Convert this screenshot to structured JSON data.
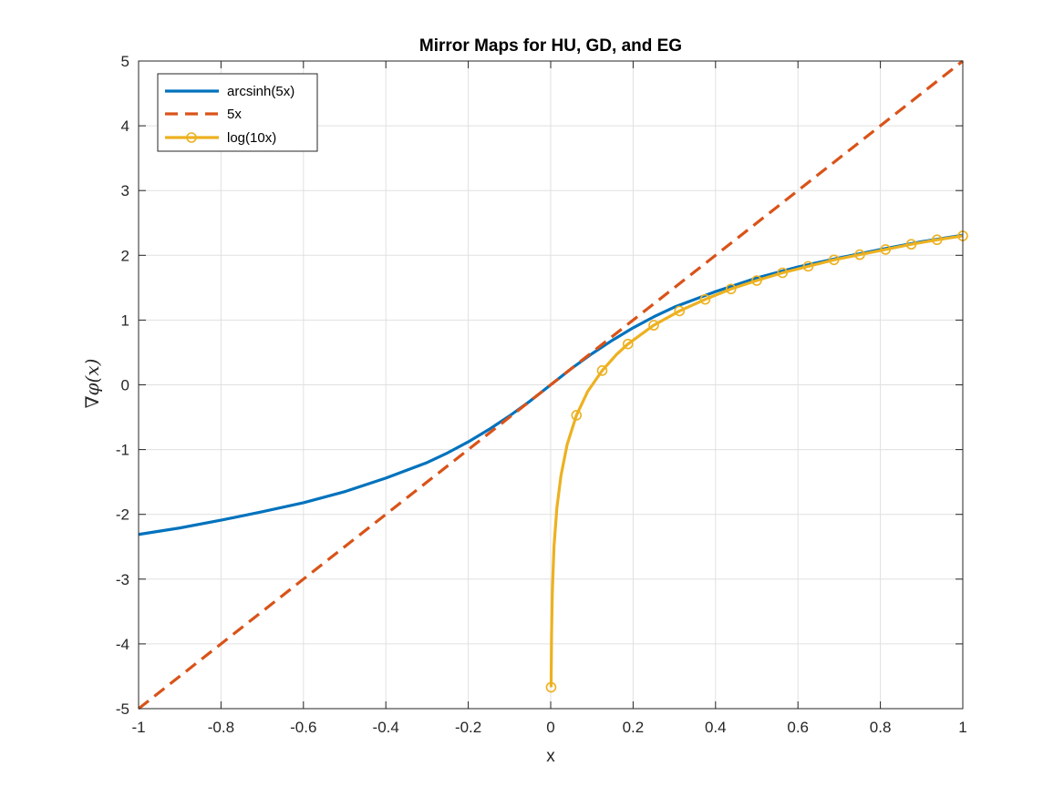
{
  "chart_data": {
    "type": "line",
    "title": "Mirror Maps for HU, GD, and EG",
    "xlabel": "x",
    "ylabel": "∇φ(x)",
    "xlim": [
      -1,
      1
    ],
    "ylim": [
      -5,
      5
    ],
    "xticks": [
      -1,
      -0.8,
      -0.6,
      -0.4,
      -0.2,
      0,
      0.2,
      0.4,
      0.6,
      0.8,
      1
    ],
    "xtick_labels": [
      "-1",
      "-0.8",
      "-0.6",
      "-0.4",
      "-0.2",
      "0",
      "0.2",
      "0.4",
      "0.6",
      "0.8",
      "1"
    ],
    "yticks": [
      -5,
      -4,
      -3,
      -2,
      -1,
      0,
      1,
      2,
      3,
      4,
      5
    ],
    "ytick_labels": [
      "-5",
      "-4",
      "-3",
      "-2",
      "-1",
      "0",
      "1",
      "2",
      "3",
      "4",
      "5"
    ],
    "grid": true,
    "legend_position": "top-left",
    "series": [
      {
        "name": "arcsinh(5x)",
        "color": "#0072BD",
        "style": "solid",
        "x": [
          -1,
          -0.9,
          -0.8,
          -0.7,
          -0.6,
          -0.5,
          -0.4,
          -0.3,
          -0.25,
          -0.2,
          -0.15,
          -0.1,
          -0.05,
          0,
          0.05,
          0.1,
          0.15,
          0.2,
          0.25,
          0.3,
          0.4,
          0.5,
          0.6,
          0.7,
          0.8,
          0.9,
          1
        ],
        "y": [
          -2.31,
          -2.21,
          -2.09,
          -1.96,
          -1.82,
          -1.65,
          -1.44,
          -1.2,
          -1.05,
          -0.88,
          -0.69,
          -0.48,
          -0.25,
          0,
          0.25,
          0.48,
          0.69,
          0.88,
          1.05,
          1.2,
          1.44,
          1.65,
          1.82,
          1.96,
          2.09,
          2.21,
          2.31
        ]
      },
      {
        "name": "5x",
        "color": "#D95319",
        "style": "dashed",
        "x": [
          -1,
          1
        ],
        "y": [
          -5,
          5
        ]
      },
      {
        "name": "log(10x)",
        "color": "#EDB120",
        "style": "solid-marker",
        "x": [
          0.001,
          0.002,
          0.004,
          0.008,
          0.015,
          0.025,
          0.04,
          0.0625,
          0.09,
          0.125,
          0.16,
          0.1875,
          0.25,
          0.3125,
          0.375,
          0.4375,
          0.5,
          0.5625,
          0.625,
          0.6875,
          0.75,
          0.8125,
          0.875,
          0.9375,
          1
        ],
        "y": [
          -4.67,
          -3.9,
          -3.2,
          -2.5,
          -1.9,
          -1.4,
          -0.92,
          -0.47,
          -0.1,
          0.22,
          0.47,
          0.63,
          0.92,
          1.14,
          1.32,
          1.48,
          1.61,
          1.73,
          1.83,
          1.93,
          2.01,
          2.09,
          2.17,
          2.24,
          2.3
        ],
        "markers_x": [
          0.001,
          0.0625,
          0.125,
          0.1875,
          0.25,
          0.3125,
          0.375,
          0.4375,
          0.5,
          0.5625,
          0.625,
          0.6875,
          0.75,
          0.8125,
          0.875,
          0.9375,
          1
        ],
        "markers_y": [
          -4.67,
          -0.47,
          0.22,
          0.63,
          0.92,
          1.14,
          1.32,
          1.48,
          1.61,
          1.73,
          1.83,
          1.93,
          2.01,
          2.09,
          2.17,
          2.24,
          2.3
        ]
      }
    ]
  }
}
